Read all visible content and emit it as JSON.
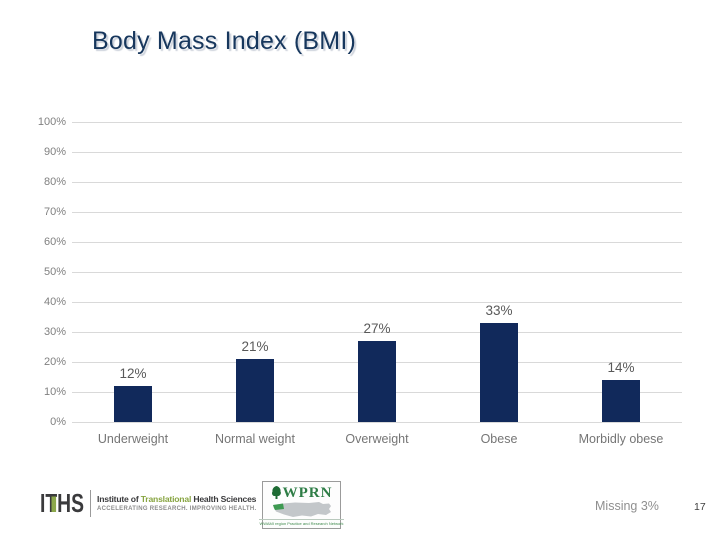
{
  "title": "Body Mass Index (BMI)",
  "chart_data": {
    "type": "bar",
    "title": "Body Mass Index (BMI)",
    "categories": [
      "Underweight",
      "Normal weight",
      "Overweight",
      "Obese",
      "Morbidly obese"
    ],
    "values": [
      12,
      21,
      27,
      33,
      14
    ],
    "value_labels": [
      "12%",
      "21%",
      "27%",
      "33%",
      "14%"
    ],
    "xlabel": "",
    "ylabel": "",
    "ylim": [
      0,
      100
    ],
    "ytick_step": 10,
    "ytick_labels": [
      "0%",
      "10%",
      "20%",
      "30%",
      "40%",
      "50%",
      "60%",
      "70%",
      "80%",
      "90%",
      "100%"
    ],
    "grid": true,
    "legend_position": "none",
    "bar_color": "#11295B",
    "gridline_color": "#D9D9D9",
    "axis_label_color": "#808080",
    "value_label_color": "#595959"
  },
  "footer": {
    "iths_logo": {
      "acronym": "ITHS",
      "name_prefix": "Institute of ",
      "name_highlight": "Translational",
      "name_suffix": " Health Sciences",
      "tagline": "ACCELERATING RESEARCH. IMPROVING HEALTH."
    },
    "wprn_logo": {
      "acronym": "WPRN",
      "caption": "WWAMI region Practice and Research Network"
    },
    "missing_note": "Missing 3%",
    "page_number": "17"
  },
  "colors": {
    "title": "#17375D",
    "bar": "#11295B",
    "iths_green": "#87A440",
    "wprn_green": "#2E7D46"
  }
}
